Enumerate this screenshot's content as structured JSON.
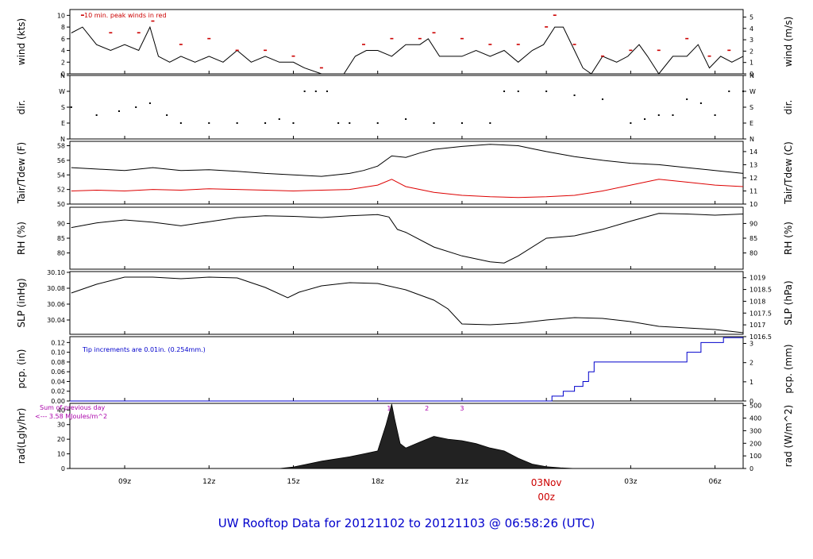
{
  "title": "UW Rooftop Data for 20121102  to  20121103 @ 06:58:26  (UTC)",
  "x_axis": {
    "ticks": [
      "09z",
      "12z",
      "15z",
      "18z",
      "21z",
      "00z",
      "03z",
      "06z"
    ],
    "tick_hours": [
      9,
      12,
      15,
      18,
      21,
      24,
      27,
      30
    ],
    "date_label": "03Nov",
    "date_label_hour": 24,
    "range_hours": [
      7.05,
      31.0
    ]
  },
  "colors": {
    "title": "#0000cc",
    "date": "#cc0000",
    "wind_peak": "#cc0000",
    "dew": "#dd0000",
    "precip": "#0000cc",
    "rad_note": "#aa00aa",
    "line": "#000000"
  },
  "panels": [
    {
      "id": "wind",
      "left_label": "wind (kts)",
      "right_label": "wind (m/s)",
      "left_ticks": [
        "0",
        "2",
        "4",
        "6",
        "8",
        "10"
      ],
      "right_ticks": [
        "0",
        "1",
        "2",
        "3",
        "4",
        "5"
      ],
      "annotation": "10 min. peak winds in red"
    },
    {
      "id": "dir",
      "left_label": "dir.",
      "right_label": "dir.",
      "left_ticks": [
        "N",
        "E",
        "S",
        "W",
        "N"
      ],
      "right_ticks": [
        "N",
        "E",
        "S",
        "W",
        "N"
      ]
    },
    {
      "id": "temp",
      "left_label": "Tair/Tdew (F)",
      "right_label": "Tair/Tdew (C)",
      "left_ticks": [
        "50",
        "52",
        "54",
        "56",
        "58"
      ],
      "right_ticks": [
        "10",
        "11",
        "12",
        "13",
        "14"
      ]
    },
    {
      "id": "rh",
      "left_label": "RH (%)",
      "right_label": "RH (%)",
      "left_ticks": [
        "80",
        "85",
        "90"
      ],
      "right_ticks": [
        "80",
        "85",
        "90"
      ]
    },
    {
      "id": "slp",
      "left_label": "SLP (inHg)",
      "right_label": "SLP (hPa)",
      "left_ticks": [
        "30.04",
        "30.06",
        "30.08",
        "30.10"
      ],
      "right_ticks": [
        "1016.5",
        "1017",
        "1017.5",
        "1018",
        "1018.5",
        "1019"
      ]
    },
    {
      "id": "pcp",
      "left_label": "pcp. (in)",
      "right_label": "pcp. (mm)",
      "left_ticks": [
        "0.00",
        "0.02",
        "0.04",
        "0.06",
        "0.08",
        "0.10",
        "0.12"
      ],
      "right_ticks": [
        "0",
        "1",
        "2",
        "3"
      ],
      "annotation": "Tip increments are 0.01in. (0.254mm.)"
    },
    {
      "id": "rad",
      "left_label": "rad(Lgly/hr)",
      "right_label": "rad (W/m^2)",
      "left_ticks": [
        "0",
        "10",
        "20",
        "30",
        "40"
      ],
      "right_ticks": [
        "0",
        "100",
        "200",
        "300",
        "400",
        "500"
      ],
      "annotation_1": "Sum of previous day",
      "annotation_2": "<--- 3.58 MJoules/m^2",
      "markers": [
        "1",
        "2",
        "3"
      ]
    }
  ],
  "chart_data": {
    "type": "line",
    "x_unit": "hours UTC since 2012-11-02 00z",
    "series": [
      {
        "name": "wind speed",
        "unit": "kts",
        "panel": "wind",
        "x": [
          7.1,
          7.5,
          8.0,
          8.5,
          9.0,
          9.5,
          9.9,
          10.2,
          10.6,
          11.0,
          11.5,
          12.0,
          12.5,
          13.0,
          13.5,
          14.0,
          14.5,
          15.0,
          15.4,
          16.0,
          16.5,
          16.8,
          17.2,
          17.6,
          18.0,
          18.5,
          19.0,
          19.5,
          19.8,
          20.2,
          20.6,
          21.0,
          21.5,
          22.0,
          22.5,
          23.0,
          23.5,
          23.9,
          24.3,
          24.6,
          25.0,
          25.3,
          25.6,
          26.0,
          26.5,
          26.9,
          27.3,
          27.6,
          28.0,
          28.5,
          29.0,
          29.4,
          29.8,
          30.2,
          30.6,
          31.0
        ],
        "y": [
          7,
          8,
          5,
          4,
          5,
          4,
          8,
          3,
          2,
          3,
          2,
          3,
          2,
          4,
          2,
          3,
          2,
          2,
          1,
          0,
          0,
          0,
          3,
          4,
          4,
          3,
          5,
          5,
          6,
          3,
          3,
          3,
          4,
          3,
          4,
          2,
          4,
          5,
          8,
          8,
          4,
          1,
          0,
          3,
          2,
          3,
          5,
          3,
          0,
          3,
          3,
          5,
          1,
          3,
          2,
          3
        ]
      },
      {
        "name": "10 min. peak winds",
        "unit": "kts",
        "panel": "wind",
        "x": [
          7.5,
          8.5,
          9.5,
          10.0,
          11.0,
          12.0,
          13.0,
          14.0,
          15.0,
          16.0,
          17.5,
          18.5,
          19.5,
          20.0,
          21.0,
          22.0,
          23.0,
          24.0,
          24.3,
          25.0,
          26.0,
          27.0,
          28.0,
          29.0,
          29.8,
          30.5
        ],
        "y": [
          10,
          7,
          7,
          9,
          5,
          6,
          4,
          4,
          3,
          1,
          5,
          6,
          6,
          7,
          6,
          5,
          5,
          8,
          10,
          5,
          3,
          4,
          4,
          6,
          3,
          4
        ]
      },
      {
        "name": "wind direction",
        "unit": "compass",
        "panel": "dir",
        "x": [
          7.1,
          8.0,
          8.8,
          9.4,
          9.9,
          10.5,
          11.0,
          12.0,
          13.0,
          14.0,
          14.5,
          15.0,
          15.4,
          15.8,
          16.2,
          16.6,
          17.0,
          18.0,
          19.0,
          20.0,
          21.0,
          22.0,
          22.5,
          23.0,
          24.0,
          25.0,
          26.0,
          27.0,
          27.5,
          28.0,
          28.5,
          29.0,
          29.5,
          30.0,
          30.5,
          31.0
        ],
        "y": [
          "S",
          "SE",
          "SSE",
          "S",
          "SSW",
          "SE",
          "E",
          "E",
          "E",
          "E",
          "ESE",
          "E",
          "W",
          "W",
          "W",
          "E",
          "E",
          "E",
          "ESE",
          "E",
          "E",
          "E",
          "W",
          "W",
          "W",
          "WSW",
          "SW",
          "E",
          "ESE",
          "SE",
          "SE",
          "SW",
          "SSW",
          "SE",
          "W",
          "W"
        ]
      },
      {
        "name": "Tair",
        "unit": "F",
        "panel": "temp",
        "x": [
          7.1,
          8.0,
          9.0,
          10.0,
          11.0,
          12.0,
          13.0,
          14.0,
          15.0,
          16.0,
          17.0,
          17.5,
          18.0,
          18.5,
          19.0,
          19.5,
          20.0,
          21.0,
          22.0,
          23.0,
          23.5,
          24.0,
          25.0,
          26.0,
          27.0,
          28.0,
          29.0,
          30.0,
          31.0
        ],
        "y": [
          55,
          54.8,
          54.6,
          55,
          54.6,
          54.7,
          54.5,
          54.2,
          54,
          53.8,
          54.2,
          54.6,
          55.2,
          56.6,
          56.4,
          57,
          57.5,
          57.9,
          58.2,
          58,
          57.6,
          57.2,
          56.5,
          56,
          55.6,
          55.4,
          55,
          54.6,
          54.2
        ]
      },
      {
        "name": "Tdew",
        "unit": "F",
        "panel": "temp",
        "x": [
          7.1,
          8.0,
          9.0,
          10.0,
          11.0,
          12.0,
          13.0,
          14.0,
          15.0,
          16.0,
          17.0,
          18.0,
          18.5,
          19.0,
          20.0,
          21.0,
          22.0,
          23.0,
          24.0,
          25.0,
          26.0,
          27.0,
          28.0,
          29.0,
          30.0,
          31.0
        ],
        "y": [
          51.8,
          51.9,
          51.8,
          52,
          51.9,
          52.1,
          52,
          51.9,
          51.8,
          51.9,
          52,
          52.6,
          53.4,
          52.4,
          51.6,
          51.2,
          51,
          50.9,
          51,
          51.2,
          51.8,
          52.6,
          53.4,
          53,
          52.6,
          52.4
        ]
      },
      {
        "name": "RH",
        "unit": "%",
        "panel": "rh",
        "x": [
          7.1,
          8.0,
          9.0,
          10.0,
          11.0,
          12.0,
          13.0,
          14.0,
          15.0,
          16.0,
          17.0,
          18.0,
          18.4,
          18.7,
          19.0,
          20.0,
          21.0,
          22.0,
          22.5,
          23.0,
          24.0,
          25.0,
          26.0,
          27.0,
          28.0,
          29.0,
          30.0,
          31.0
        ],
        "y": [
          88.6,
          90.2,
          91.2,
          90.4,
          89.2,
          90.6,
          92,
          92.6,
          92.4,
          92,
          92.6,
          93,
          92.2,
          88,
          87,
          82,
          79,
          77,
          76.6,
          79,
          85,
          85.8,
          88,
          90.8,
          93.4,
          93.2,
          92.8,
          93.2
        ]
      },
      {
        "name": "SLP",
        "unit": "inHg",
        "panel": "slp",
        "x": [
          7.1,
          8.0,
          9.0,
          10.0,
          11.0,
          12.0,
          13.0,
          14.0,
          14.8,
          15.2,
          16.0,
          17.0,
          18.0,
          19.0,
          20.0,
          20.5,
          21.0,
          22.0,
          23.0,
          24.0,
          25.0,
          26.0,
          27.0,
          28.0,
          29.0,
          30.0,
          31.0
        ],
        "y": [
          30.074,
          30.085,
          30.094,
          30.094,
          30.092,
          30.094,
          30.093,
          30.081,
          30.068,
          30.075,
          30.083,
          30.087,
          30.086,
          30.078,
          30.065,
          30.054,
          30.035,
          30.034,
          30.036,
          30.04,
          30.043,
          30.042,
          30.038,
          30.032,
          30.03,
          30.028,
          30.024
        ]
      },
      {
        "name": "precipitation (cumulative)",
        "unit": "in",
        "panel": "pcp",
        "x": [
          7.05,
          24.2,
          24.2,
          24.6,
          24.6,
          25.0,
          25.0,
          25.3,
          25.3,
          25.5,
          25.5,
          25.7,
          25.7,
          26.5,
          26.5,
          29.0,
          29.0,
          29.5,
          29.5,
          30.3,
          30.3,
          31.0
        ],
        "y": [
          0,
          0,
          0.01,
          0.01,
          0.02,
          0.02,
          0.03,
          0.03,
          0.04,
          0.04,
          0.06,
          0.06,
          0.08,
          0.08,
          0.08,
          0.08,
          0.1,
          0.1,
          0.12,
          0.12,
          0.13,
          0.13
        ]
      },
      {
        "name": "solar radiation",
        "unit": "Lgly/hr",
        "panel": "rad",
        "x": [
          7.05,
          14.5,
          15.0,
          16.0,
          17.0,
          17.5,
          18.0,
          18.3,
          18.5,
          18.6,
          18.8,
          19.0,
          19.5,
          20.0,
          20.5,
          21.0,
          21.5,
          22.0,
          22.5,
          23.0,
          23.5,
          24.0,
          24.5,
          25.0,
          31.0
        ],
        "y": [
          0,
          0,
          1,
          5,
          8,
          10,
          12,
          30,
          44,
          34,
          17,
          14,
          18,
          22,
          20,
          19,
          17,
          14,
          12,
          7,
          3,
          1.2,
          0.5,
          0,
          0
        ]
      }
    ]
  }
}
